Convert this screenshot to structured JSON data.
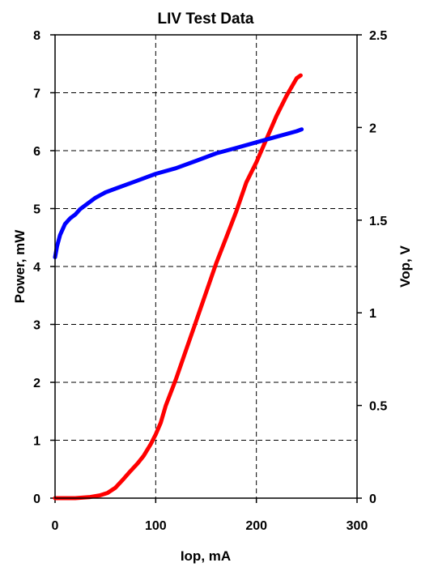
{
  "chart_data": {
    "type": "line",
    "title": "LIV Test Data",
    "xlabel": "Iop, mA",
    "ylabel_left": "Power, mW",
    "ylabel_right": "Vop, V",
    "xlim": [
      0,
      300
    ],
    "ylim_left": [
      0,
      8
    ],
    "ylim_right": [
      0,
      2.5
    ],
    "x_ticks": [
      "0",
      "100",
      "200",
      "300"
    ],
    "y_left_ticks": [
      "0",
      "1",
      "2",
      "3",
      "4",
      "5",
      "6",
      "7",
      "8"
    ],
    "y_right_ticks": [
      "0",
      "0.5",
      "1",
      "1.5",
      "2",
      "2.5"
    ],
    "grid": "dashed",
    "colors": {
      "power": "#ff0000",
      "vop": "#0000ff"
    },
    "series": [
      {
        "axis": "left",
        "color": "#ff0000",
        "x": [
          0,
          20,
          35,
          45,
          52,
          60,
          68,
          75,
          82,
          88,
          95,
          100,
          105,
          110,
          120,
          130,
          140,
          150,
          160,
          170,
          180,
          190,
          200,
          210,
          220,
          230,
          240,
          244
        ],
        "y": [
          0,
          0,
          0.02,
          0.05,
          0.09,
          0.18,
          0.33,
          0.47,
          0.6,
          0.73,
          0.93,
          1.1,
          1.3,
          1.6,
          2.05,
          2.55,
          3.05,
          3.55,
          4.05,
          4.5,
          4.95,
          5.45,
          5.8,
          6.2,
          6.6,
          6.95,
          7.25,
          7.3
        ]
      },
      {
        "axis": "right",
        "color": "#0000ff",
        "x": [
          0,
          2,
          5,
          10,
          15,
          20,
          25,
          30,
          40,
          50,
          60,
          80,
          100,
          120,
          140,
          160,
          180,
          200,
          220,
          240,
          245
        ],
        "y": [
          1.3,
          1.36,
          1.42,
          1.48,
          1.51,
          1.53,
          1.56,
          1.58,
          1.62,
          1.65,
          1.67,
          1.71,
          1.75,
          1.78,
          1.82,
          1.86,
          1.89,
          1.92,
          1.95,
          1.98,
          1.99
        ]
      }
    ]
  }
}
